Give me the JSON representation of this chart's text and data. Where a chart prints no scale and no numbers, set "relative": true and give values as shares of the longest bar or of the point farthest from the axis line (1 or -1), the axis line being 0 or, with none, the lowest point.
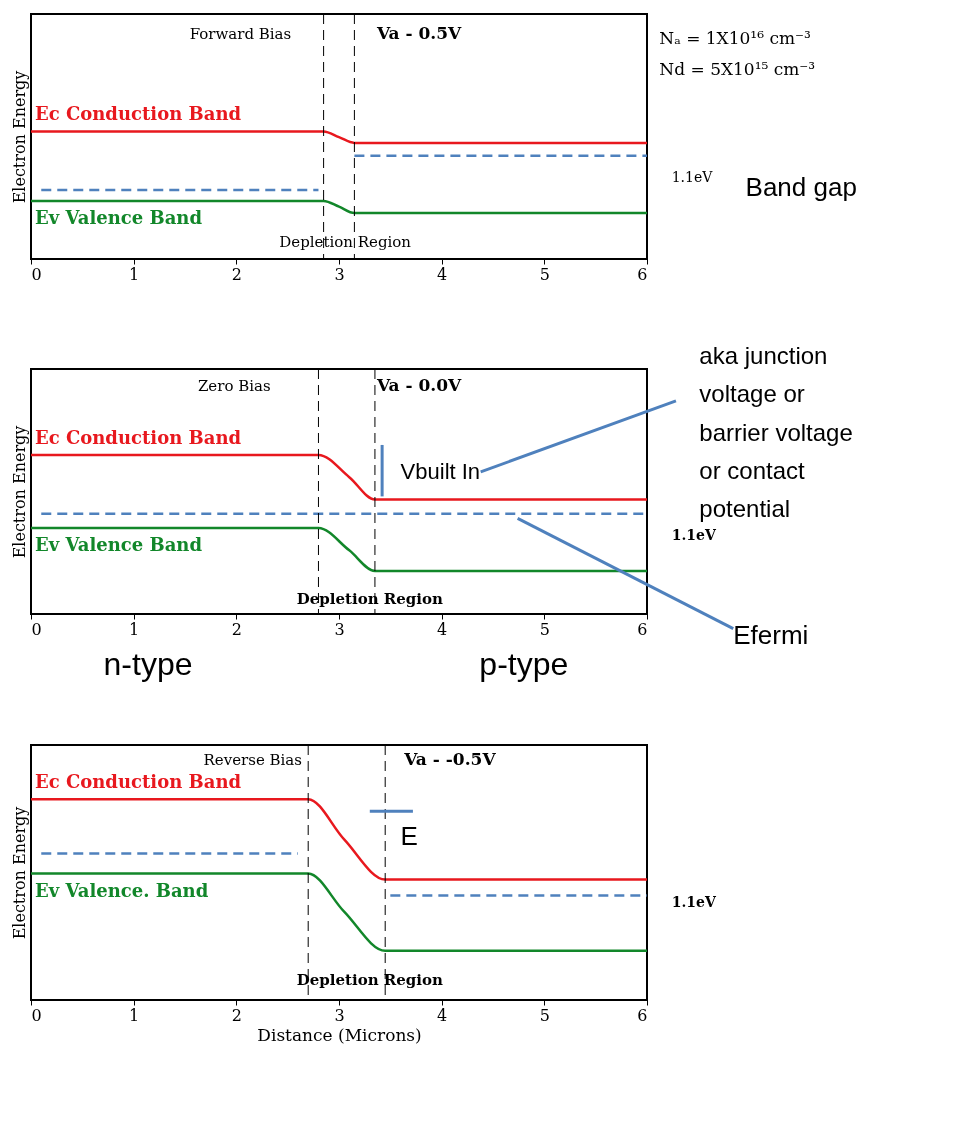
{
  "chart_data": [
    {
      "type": "line",
      "relative": true,
      "ylabel": "Electron Energy",
      "xlim": [
        0,
        6
      ],
      "xticks": [
        0,
        1,
        2,
        3,
        4,
        5,
        6
      ],
      "series": [
        {
          "name": "Ec Conduction Band",
          "color": "#e8181e",
          "x": [
            0,
            2.85,
            3.0,
            3.15,
            6
          ],
          "values": [
            1,
            1,
            0.955,
            0.91,
            0.91
          ]
        },
        {
          "name": "Ev Valence Band",
          "color": "#12872a",
          "x": [
            0,
            2.85,
            3.0,
            3.15,
            6
          ],
          "values": [
            0.455,
            0.455,
            0.41,
            0.36,
            0.36
          ]
        },
        {
          "color": "#4f81bd",
          "line_style": "dashed",
          "x": [
            0.1,
            2.8
          ],
          "values": [
            0.54,
            0.54
          ]
        },
        {
          "color": "#4f81bd",
          "line_style": "dashed",
          "x": [
            3.15,
            6
          ],
          "values": [
            0.81,
            0.81
          ]
        }
      ],
      "ref_lines": [
        {
          "axis": "x",
          "value": 2.85,
          "color": "#000000",
          "line_style": "dashed"
        },
        {
          "axis": "x",
          "value": 3.15,
          "color": "#000000",
          "line_style": "dashed"
        }
      ],
      "annotations": [
        "Forward Bias",
        "Va - 0.5V",
        "Nₐ = 1X10¹⁶ cm⁻³",
        "Nd = 5X10¹⁵ cm⁻³",
        "1.1eV",
        "Band gap",
        "Depletion Region"
      ]
    },
    {
      "type": "line",
      "relative": true,
      "ylabel": "Electron Energy",
      "xlim": [
        0,
        6
      ],
      "xticks": [
        0,
        1,
        2,
        3,
        4,
        5,
        6
      ],
      "series": [
        {
          "name": "Ec Conduction Band",
          "color": "#e8181e",
          "x": [
            0,
            2.8,
            3.1,
            3.35,
            6
          ],
          "values": [
            1,
            1,
            0.86,
            0.72,
            0.72
          ]
        },
        {
          "name": "Ev Valence Band",
          "color": "#12872a",
          "x": [
            0,
            2.8,
            3.1,
            3.35,
            6
          ],
          "values": [
            0.54,
            0.54,
            0.4,
            0.27,
            0.27
          ]
        },
        {
          "color": "#4f81bd",
          "line_style": "dashed",
          "x": [
            0.1,
            6
          ],
          "values": [
            0.63,
            0.63
          ]
        }
      ],
      "ref_lines": [
        {
          "axis": "x",
          "value": 2.8,
          "color": "#000000",
          "line_style": "dashed"
        },
        {
          "axis": "x",
          "value": 3.35,
          "color": "#000000",
          "line_style": "dashed"
        }
      ],
      "annotations": [
        "Zero Bias",
        "Va - 0.0V",
        "Vbuilt In",
        "1.1eV",
        "Depletion Region",
        "aka junction\nvoltage or\nbarrier voltage\nor contact\npotential",
        "Efermi",
        "n-type",
        "p-type"
      ]
    },
    {
      "type": "line",
      "relative": true,
      "ylabel": "Electron Energy",
      "xlabel": "Distance (Microns)",
      "xlim": [
        0,
        6
      ],
      "xticks": [
        0,
        1,
        2,
        3,
        4,
        5,
        6
      ],
      "series": [
        {
          "name": "Ec Conduction Band",
          "color": "#e8181e",
          "x": [
            0,
            2.7,
            3.05,
            3.45,
            6
          ],
          "values": [
            1,
            1,
            0.8,
            0.6,
            0.6
          ]
        },
        {
          "name": "Ev Valence. Band",
          "color": "#12872a",
          "x": [
            0,
            2.7,
            3.05,
            3.45,
            6
          ],
          "values": [
            0.63,
            0.63,
            0.44,
            0.245,
            0.245
          ]
        },
        {
          "color": "#4f81bd",
          "line_style": "dashed",
          "x": [
            0.1,
            2.6
          ],
          "values": [
            0.73,
            0.73
          ]
        },
        {
          "color": "#4f81bd",
          "line_style": "dashed",
          "x": [
            3.5,
            6
          ],
          "values": [
            0.52,
            0.52
          ]
        }
      ],
      "ref_lines": [
        {
          "axis": "x",
          "value": 2.7,
          "color": "#000000",
          "line_style": "dashed"
        },
        {
          "axis": "x",
          "value": 3.45,
          "color": "#000000",
          "line_style": "dashed"
        }
      ],
      "annotations": [
        "Reverse Bias",
        "Va - -0.5V",
        "E",
        "1.1eV",
        "Depletion Region"
      ]
    }
  ]
}
